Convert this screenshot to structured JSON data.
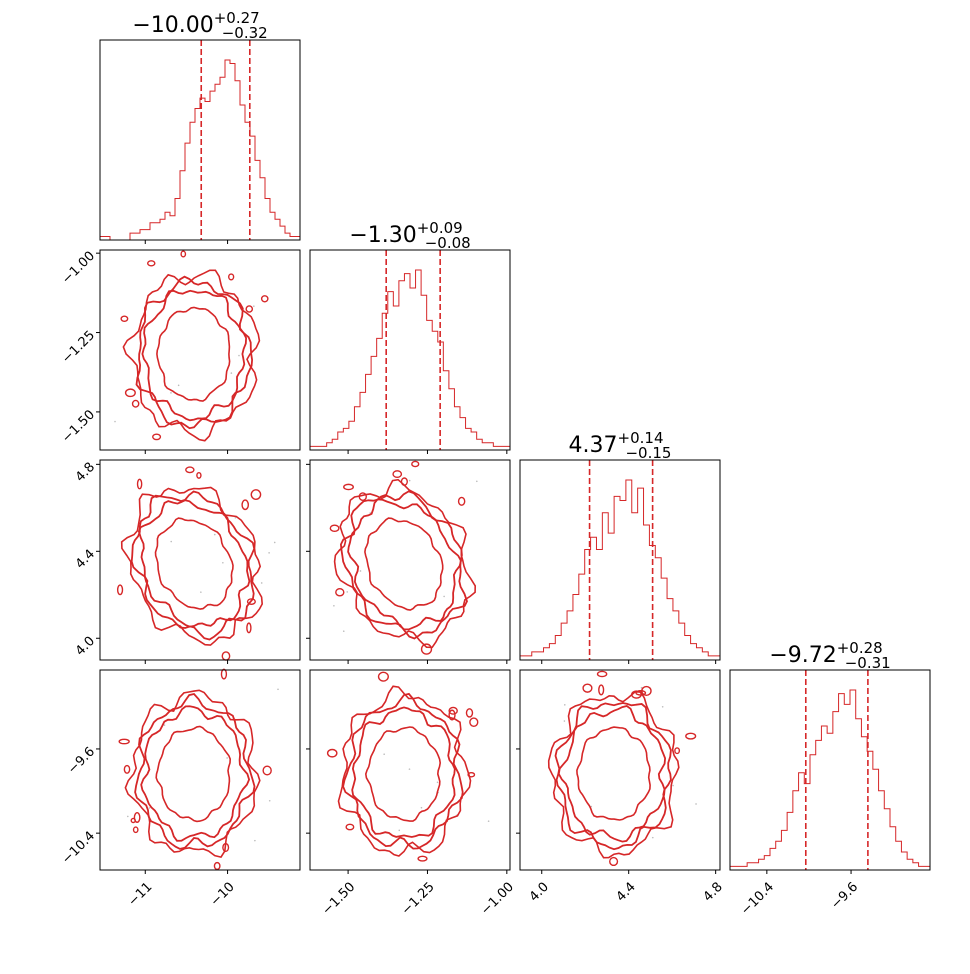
{
  "chart_data": {
    "type": "corner",
    "color": "#d62728",
    "parameters": [
      {
        "index": 0,
        "title": {
          "median": "−10.00",
          "plus": "+0.27",
          "minus": "−0.32"
        },
        "median": -10.0,
        "q_low": -10.32,
        "q_high": -9.73,
        "range": [
          -11.55,
          -9.12
        ],
        "ticks": [
          {
            "value": -11,
            "label": "−11"
          },
          {
            "value": -10,
            "label": "−10"
          }
        ],
        "histogram": [
          1,
          1,
          0,
          0,
          0,
          0,
          2,
          2,
          3,
          3,
          5,
          5,
          6,
          8,
          7,
          12,
          20,
          28,
          34,
          38,
          41,
          40,
          43,
          45,
          47,
          52,
          51,
          46,
          39,
          34,
          30,
          23,
          18,
          12,
          8,
          6,
          4,
          2,
          1,
          1
        ]
      },
      {
        "index": 1,
        "title": {
          "median": "−1.30",
          "plus": "+0.09",
          "minus": "−0.08"
        },
        "median": -1.3,
        "q_low": -1.38,
        "q_high": -1.21,
        "range": [
          -1.62,
          -0.99
        ],
        "ticks": [
          {
            "value": -1.5,
            "label": "−1.50"
          },
          {
            "value": -1.25,
            "label": "−1.25"
          },
          {
            "value": -1.0,
            "label": "−1.00"
          }
        ],
        "histogram": [
          1,
          1,
          1,
          2,
          3,
          5,
          6,
          8,
          12,
          16,
          21,
          26,
          31,
          38,
          44,
          40,
          47,
          49,
          45,
          50,
          43,
          36,
          33,
          30,
          22,
          17,
          12,
          9,
          6,
          5,
          3,
          2,
          2,
          1,
          1,
          1
        ]
      },
      {
        "index": 2,
        "title": {
          "median": "4.37",
          "plus": "+0.14",
          "minus": "−0.15"
        },
        "median": 4.37,
        "q_low": 4.22,
        "q_high": 4.51,
        "range": [
          3.9,
          4.82
        ],
        "ticks": [
          {
            "value": 4.0,
            "label": "4.0"
          },
          {
            "value": 4.4,
            "label": "4.4"
          },
          {
            "value": 4.8,
            "label": "4.8"
          }
        ],
        "histogram": [
          1,
          1,
          2,
          2,
          3,
          4,
          6,
          9,
          12,
          16,
          21,
          27,
          30,
          27,
          36,
          31,
          40,
          39,
          44,
          36,
          42,
          33,
          28,
          25,
          20,
          15,
          12,
          9,
          6,
          4,
          3,
          2,
          1,
          1
        ]
      },
      {
        "index": 3,
        "title": {
          "median": "−9.72",
          "plus": "+0.28",
          "minus": "−0.31"
        },
        "median": -9.72,
        "q_low": -10.03,
        "q_high": -9.44,
        "range": [
          -10.75,
          -8.85
        ],
        "ticks": [
          {
            "value": -10.4,
            "label": "−10.4"
          },
          {
            "value": -9.6,
            "label": "−9.6"
          }
        ],
        "histogram": [
          1,
          1,
          1,
          2,
          2,
          3,
          4,
          6,
          8,
          11,
          16,
          22,
          27,
          24,
          32,
          36,
          40,
          38,
          44,
          49,
          46,
          50,
          42,
          37,
          33,
          28,
          22,
          17,
          12,
          8,
          5,
          3,
          2,
          1,
          1
        ]
      }
    ]
  }
}
